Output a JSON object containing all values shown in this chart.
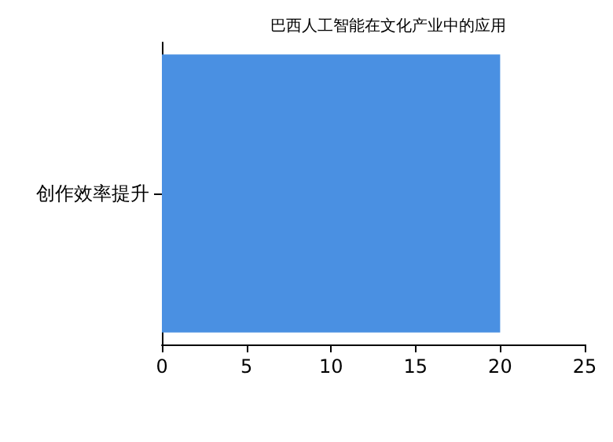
{
  "chart_data": {
    "type": "bar",
    "orientation": "horizontal",
    "title": "巴西人工智能在文化产业中的应用",
    "categories": [
      "创作效率提升"
    ],
    "series": [
      {
        "color": "#4a90e2",
        "values": [
          20
        ]
      }
    ],
    "xlim": [
      0,
      25
    ],
    "xticks": [
      0,
      5,
      10,
      15,
      20,
      25
    ],
    "grid": false
  }
}
